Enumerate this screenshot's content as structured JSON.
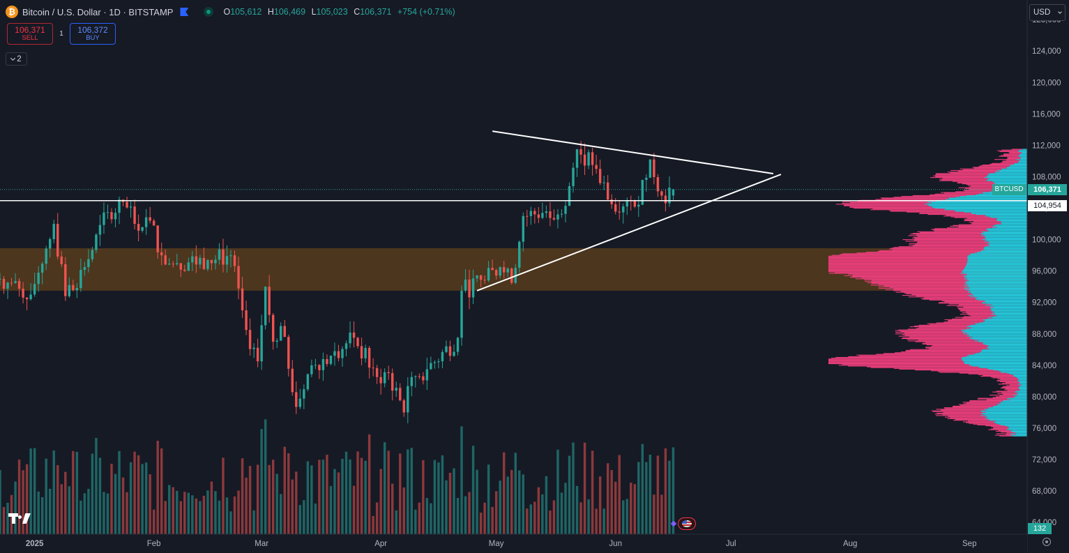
{
  "header": {
    "logo_symbol": "₿",
    "title": "Bitcoin / U.S. Dollar · 1D · BITSTAMP",
    "ohlc": [
      {
        "k": "O",
        "v": "105,612"
      },
      {
        "k": "H",
        "v": "106,469"
      },
      {
        "k": "L",
        "v": "105,023"
      },
      {
        "k": "C",
        "v": "106,371"
      },
      {
        "k": "",
        "v": "+754 (+0.71%)"
      }
    ]
  },
  "trade": {
    "sell_price": "106,371",
    "sell_label": "SELL",
    "spread": "1",
    "buy_price": "106,372",
    "buy_label": "BUY"
  },
  "indicators_toggle": "2",
  "currency": "USD",
  "price_scale": {
    "labels": [
      "128,000",
      "124,000",
      "120,000",
      "116,000",
      "112,000",
      "108,000",
      "104,000",
      "100,000",
      "96,000",
      "92,000",
      "88,000",
      "84,000",
      "80,000",
      "76,000",
      "72,000",
      "68,000",
      "64,000"
    ],
    "symbol_tag": "BTCUSD",
    "last_price": "106,371",
    "line_price": "104,954",
    "volume_tag": "132"
  },
  "time_scale": [
    "2025",
    "Feb",
    "Mar",
    "Apr",
    "May",
    "Jun",
    "Jul",
    "Aug",
    "Sep"
  ],
  "colors": {
    "background": "#161a25",
    "up": "#26a69a",
    "down": "#ef5350",
    "zone": "#4c361d",
    "profile_pink": "#e83e7a",
    "profile_cyan": "#26c6da",
    "trendline": "#ffffff"
  },
  "chart_data": {
    "type": "candlestick",
    "symbol": "BTCUSD",
    "interval": "1D",
    "y_range": [
      62500,
      130500
    ],
    "x_range": [
      "2024-12-23",
      "2025-09-16"
    ],
    "anchors": [
      {
        "date": "2024-12-23",
        "close": 95000
      },
      {
        "date": "2024-12-31",
        "close": 93000
      },
      {
        "date": "2025-01-06",
        "close": 102000
      },
      {
        "date": "2025-01-09",
        "close": 92800
      },
      {
        "date": "2025-01-14",
        "close": 96500
      },
      {
        "date": "2025-01-20",
        "close": 103500
      },
      {
        "date": "2025-01-24",
        "close": 104800
      },
      {
        "date": "2025-01-27",
        "close": 102000
      },
      {
        "date": "2025-01-31",
        "close": 102400
      },
      {
        "date": "2025-02-03",
        "close": 98000
      },
      {
        "date": "2025-02-07",
        "close": 97000
      },
      {
        "date": "2025-02-15",
        "close": 97400
      },
      {
        "date": "2025-02-21",
        "close": 98000
      },
      {
        "date": "2025-02-25",
        "close": 88500
      },
      {
        "date": "2025-02-28",
        "close": 84500
      },
      {
        "date": "2025-03-02",
        "close": 94000
      },
      {
        "date": "2025-03-04",
        "close": 87000
      },
      {
        "date": "2025-03-06",
        "close": 89000
      },
      {
        "date": "2025-03-10",
        "close": 78700
      },
      {
        "date": "2025-03-14",
        "close": 84000
      },
      {
        "date": "2025-03-20",
        "close": 85800
      },
      {
        "date": "2025-03-25",
        "close": 87500
      },
      {
        "date": "2025-03-31",
        "close": 82500
      },
      {
        "date": "2025-04-03",
        "close": 83000
      },
      {
        "date": "2025-04-07",
        "close": 78000
      },
      {
        "date": "2025-04-09",
        "close": 82500
      },
      {
        "date": "2025-04-13",
        "close": 83500
      },
      {
        "date": "2025-04-21",
        "close": 87500
      },
      {
        "date": "2025-04-22",
        "close": 93500
      },
      {
        "date": "2025-04-28",
        "close": 94800
      },
      {
        "date": "2025-05-02",
        "close": 96500
      },
      {
        "date": "2025-05-05",
        "close": 94500
      },
      {
        "date": "2025-05-08",
        "close": 103000
      },
      {
        "date": "2025-05-14",
        "close": 103600
      },
      {
        "date": "2025-05-17",
        "close": 103200
      },
      {
        "date": "2025-05-20",
        "close": 106800
      },
      {
        "date": "2025-05-22",
        "close": 111500
      },
      {
        "date": "2025-05-26",
        "close": 109500
      },
      {
        "date": "2025-05-31",
        "close": 104500
      },
      {
        "date": "2025-06-04",
        "close": 105000
      },
      {
        "date": "2025-06-06",
        "close": 104200
      },
      {
        "date": "2025-06-10",
        "close": 110200
      },
      {
        "date": "2025-06-13",
        "close": 105600
      },
      {
        "date": "2025-06-16",
        "close": 106371
      }
    ],
    "demand_zone": {
      "from": 93500,
      "to": 98900
    },
    "horizontal_line": 104954,
    "trendlines": [
      {
        "name": "resistance",
        "points": [
          [
            "2025-04-30",
            113800
          ],
          [
            "2025-07-12",
            108400
          ]
        ]
      },
      {
        "name": "support",
        "points": [
          [
            "2025-04-26",
            93500
          ],
          [
            "2025-07-14",
            108300
          ]
        ]
      }
    ]
  }
}
